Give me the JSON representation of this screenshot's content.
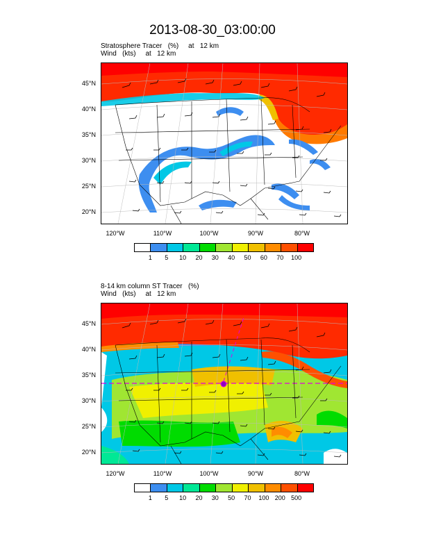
{
  "title": "2013-08-30_03:00:00",
  "panel1": {
    "line1": "Stratosphere Tracer   (%)     at   12 km",
    "line2": "Wind   (kts)     at   12 km",
    "lat_labels": [
      "45°N",
      "40°N",
      "35°N",
      "30°N",
      "25°N",
      "20°N"
    ],
    "lon_labels": [
      "120°W",
      "110°W",
      "100°W",
      "90°W",
      "80°W"
    ],
    "colorbar": {
      "colors": [
        "#ffffff",
        "#3d8ef0",
        "#00c8e6",
        "#00e896",
        "#00dc00",
        "#a0e632",
        "#f0f000",
        "#f0c000",
        "#ff8c00",
        "#ff5000",
        "#ff0000"
      ],
      "labels": [
        "1",
        "5",
        "10",
        "20",
        "30",
        "40",
        "50",
        "60",
        "70",
        "100"
      ]
    }
  },
  "panel2": {
    "line1": "8-14 km column ST Tracer   (%)",
    "line2": "Wind   (kts)     at   12 km",
    "lat_labels": [
      "45°N",
      "40°N",
      "35°N",
      "30°N",
      "25°N",
      "20°N"
    ],
    "lon_labels": [
      "120°W",
      "110°W",
      "100°W",
      "90°W",
      "80°W"
    ],
    "colorbar": {
      "colors": [
        "#ffffff",
        "#3d8ef0",
        "#00c8e6",
        "#00e896",
        "#00dc00",
        "#a0e632",
        "#f0f000",
        "#f0c000",
        "#ff8c00",
        "#ff5000",
        "#ff0000"
      ],
      "labels": [
        "1",
        "5",
        "10",
        "20",
        "30",
        "50",
        "70",
        "100",
        "200",
        "500"
      ]
    }
  }
}
